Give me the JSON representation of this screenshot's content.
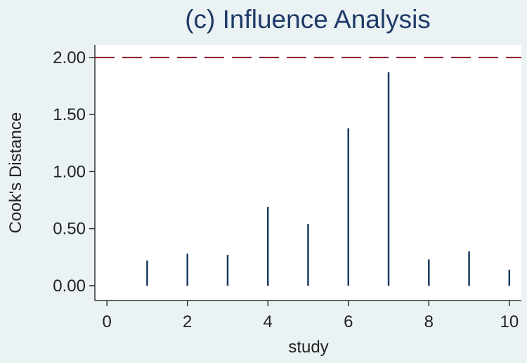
{
  "chart_data": {
    "type": "bar",
    "title": "(c) Influence Analysis",
    "xlabel": "study",
    "ylabel": "Cook's Distance",
    "xlim": [
      -0.3,
      10.3
    ],
    "ylim": [
      -0.13,
      2.11
    ],
    "x_ticks": [
      "0",
      "2",
      "4",
      "6",
      "8",
      "10"
    ],
    "y_ticks": [
      "0.00",
      "0.50",
      "1.00",
      "1.50",
      "2.00"
    ],
    "x": [
      1,
      2,
      3,
      4,
      5,
      6,
      7,
      8,
      9,
      10
    ],
    "values": [
      0.22,
      0.28,
      0.27,
      0.69,
      0.54,
      1.38,
      1.87,
      0.23,
      0.3,
      0.14
    ],
    "reference_line": {
      "y": 2.0,
      "style": "dashed"
    },
    "grid": false,
    "colors": {
      "background": "#eaf2f3",
      "plot_area": "#ffffff",
      "spikes": "#1a3b5f",
      "reference_line": "#8b1a2b",
      "title": "#1e3a66",
      "text": "#222222"
    }
  }
}
